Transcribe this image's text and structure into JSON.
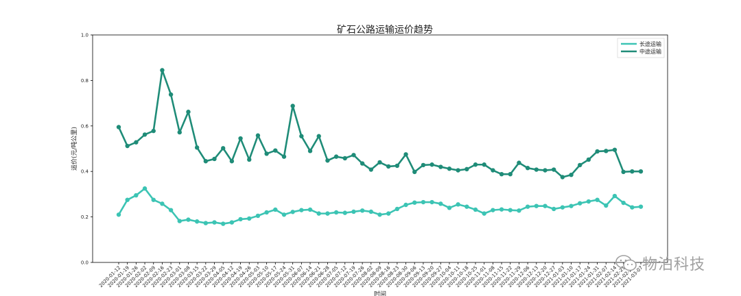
{
  "chart_data": {
    "type": "line",
    "title": "矿石公路运输运价趋势",
    "xlabel": "时间",
    "ylabel": "运价(元/吨公里)",
    "ylim": [
      0.0,
      1.0
    ],
    "yticks": [
      "0.0",
      "0.2",
      "0.4",
      "0.6",
      "0.8",
      "1.0"
    ],
    "legend_position": "top-right",
    "grid": false,
    "categories": [
      "2020-01-12",
      "2020-01-19",
      "2020-01-26",
      "2020-02-02",
      "2020-02-09",
      "2020-02-16",
      "2020-02-23",
      "2020-03-01",
      "2020-03-08",
      "2020-03-15",
      "2020-03-22",
      "2020-03-29",
      "2020-04-05",
      "2020-04-12",
      "2020-04-19",
      "2020-04-26",
      "2020-05-03",
      "2020-05-10",
      "2020-05-17",
      "2020-05-24",
      "2020-05-31",
      "2020-06-07",
      "2020-06-14",
      "2020-06-21",
      "2020-06-28",
      "2020-07-05",
      "2020-07-12",
      "2020-07-19",
      "2020-07-26",
      "2020-08-02",
      "2020-08-09",
      "2020-08-16",
      "2020-08-23",
      "2020-08-30",
      "2020-09-06",
      "2020-09-13",
      "2020-09-20",
      "2020-09-27",
      "2020-10-04",
      "2020-10-11",
      "2020-10-18",
      "2020-10-25",
      "2020-11-01",
      "2020-11-08",
      "2020-11-15",
      "2020-11-22",
      "2020-11-29",
      "2020-12-06",
      "2020-12-13",
      "2020-12-20",
      "2020-12-27",
      "2021-01-03",
      "2021-01-10",
      "2021-01-17",
      "2021-01-24",
      "2021-01-31",
      "2021-02-07",
      "2021-02-14",
      "2021-02-21",
      "2021-02-28",
      "2021-03-07"
    ],
    "series": [
      {
        "name": "长途运输",
        "color": "#3cc4b4",
        "values": [
          0.21,
          0.275,
          0.295,
          0.325,
          0.275,
          0.258,
          0.23,
          0.182,
          0.188,
          0.18,
          0.173,
          0.176,
          0.17,
          0.176,
          0.19,
          0.193,
          0.205,
          0.22,
          0.232,
          0.21,
          0.222,
          0.23,
          0.232,
          0.215,
          0.215,
          0.22,
          0.218,
          0.223,
          0.228,
          0.223,
          0.21,
          0.215,
          0.235,
          0.253,
          0.263,
          0.265,
          0.265,
          0.258,
          0.24,
          0.255,
          0.245,
          0.232,
          0.215,
          0.23,
          0.233,
          0.23,
          0.228,
          0.245,
          0.248,
          0.248,
          0.235,
          0.242,
          0.248,
          0.26,
          0.268,
          0.275,
          0.25,
          0.292,
          0.262,
          0.242,
          0.245
        ]
      },
      {
        "name": "中途运输",
        "color": "#1f8c78",
        "values": [
          0.595,
          0.512,
          0.528,
          0.562,
          0.578,
          0.845,
          0.738,
          0.572,
          0.662,
          0.505,
          0.445,
          0.455,
          0.502,
          0.445,
          0.545,
          0.452,
          0.558,
          0.478,
          0.492,
          0.465,
          0.688,
          0.555,
          0.49,
          0.555,
          0.448,
          0.465,
          0.458,
          0.472,
          0.435,
          0.408,
          0.44,
          0.422,
          0.425,
          0.475,
          0.398,
          0.428,
          0.43,
          0.42,
          0.412,
          0.405,
          0.41,
          0.43,
          0.43,
          0.405,
          0.388,
          0.388,
          0.438,
          0.415,
          0.408,
          0.405,
          0.408,
          0.375,
          0.385,
          0.428,
          0.452,
          0.488,
          0.49,
          0.495,
          0.398,
          0.4,
          0.4
        ]
      }
    ]
  },
  "watermark": {
    "text": "物泊科技",
    "icon": "wechat-icon"
  }
}
